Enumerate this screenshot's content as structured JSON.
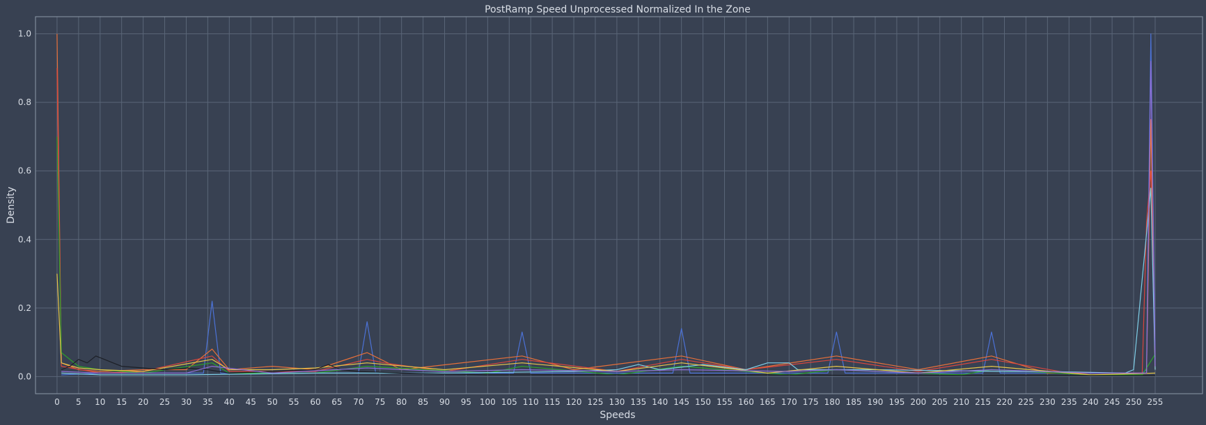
{
  "chart_data": {
    "type": "line",
    "title": "PostRamp Speed Unprocessed Normalized In the Zone",
    "xlabel": "Speeds",
    "ylabel": "Density",
    "xlim": [
      -5,
      266
    ],
    "ylim": [
      -0.05,
      1.05
    ],
    "x_ticks": [
      0,
      5,
      10,
      15,
      20,
      25,
      30,
      35,
      40,
      45,
      50,
      55,
      60,
      65,
      70,
      75,
      80,
      85,
      90,
      95,
      100,
      105,
      110,
      115,
      120,
      125,
      130,
      135,
      140,
      145,
      150,
      155,
      160,
      165,
      170,
      175,
      180,
      185,
      190,
      195,
      200,
      205,
      210,
      215,
      220,
      225,
      230,
      235,
      240,
      245,
      250,
      255
    ],
    "y_ticks": [
      0.0,
      0.2,
      0.4,
      0.6,
      0.8,
      1.0
    ],
    "y_tick_labels": [
      "0.0",
      "0.2",
      "0.4",
      "0.6",
      "0.8",
      "1.0"
    ],
    "grid": true,
    "legend": "none",
    "series": [
      {
        "color": "#4c72d6",
        "points": [
          [
            1,
            0.005
          ],
          [
            10,
            0.01
          ],
          [
            20,
            0.01
          ],
          [
            30,
            0.01
          ],
          [
            34,
            0.01
          ],
          [
            36,
            0.22
          ],
          [
            38,
            0.01
          ],
          [
            50,
            0.01
          ],
          [
            70,
            0.01
          ],
          [
            72,
            0.16
          ],
          [
            74,
            0.01
          ],
          [
            90,
            0.01
          ],
          [
            106,
            0.01
          ],
          [
            108,
            0.13
          ],
          [
            110,
            0.01
          ],
          [
            130,
            0.01
          ],
          [
            143,
            0.01
          ],
          [
            145,
            0.14
          ],
          [
            147,
            0.01
          ],
          [
            165,
            0.01
          ],
          [
            179,
            0.01
          ],
          [
            181,
            0.13
          ],
          [
            183,
            0.01
          ],
          [
            200,
            0.01
          ],
          [
            215,
            0.01
          ],
          [
            217,
            0.13
          ],
          [
            219,
            0.01
          ],
          [
            240,
            0.01
          ],
          [
            252,
            0.01
          ],
          [
            253,
            0.02
          ],
          [
            254,
            1.0
          ],
          [
            255,
            0.05
          ]
        ]
      },
      {
        "color": "#e8703a",
        "points": [
          [
            0,
            1.0
          ],
          [
            1,
            0.04
          ],
          [
            5,
            0.02
          ],
          [
            10,
            0.015
          ],
          [
            20,
            0.02
          ],
          [
            30,
            0.02
          ],
          [
            36,
            0.08
          ],
          [
            40,
            0.02
          ],
          [
            50,
            0.03
          ],
          [
            60,
            0.02
          ],
          [
            72,
            0.07
          ],
          [
            80,
            0.02
          ],
          [
            108,
            0.06
          ],
          [
            120,
            0.02
          ],
          [
            145,
            0.06
          ],
          [
            160,
            0.02
          ],
          [
            181,
            0.06
          ],
          [
            200,
            0.02
          ],
          [
            217,
            0.06
          ],
          [
            230,
            0.01
          ],
          [
            250,
            0.01
          ],
          [
            253,
            0.01
          ],
          [
            254,
            0.75
          ],
          [
            255,
            0.02
          ]
        ]
      },
      {
        "color": "#d9463e",
        "points": [
          [
            0,
            0.9
          ],
          [
            1,
            0.03
          ],
          [
            10,
            0.01
          ],
          [
            20,
            0.015
          ],
          [
            36,
            0.06
          ],
          [
            40,
            0.015
          ],
          [
            60,
            0.015
          ],
          [
            72,
            0.05
          ],
          [
            76,
            0.04
          ],
          [
            90,
            0.015
          ],
          [
            108,
            0.05
          ],
          [
            130,
            0.015
          ],
          [
            145,
            0.05
          ],
          [
            160,
            0.02
          ],
          [
            181,
            0.05
          ],
          [
            200,
            0.015
          ],
          [
            217,
            0.05
          ],
          [
            235,
            0.01
          ],
          [
            252,
            0.01
          ],
          [
            253,
            0.45
          ],
          [
            254,
            0.6
          ],
          [
            255,
            0.02
          ]
        ]
      },
      {
        "color": "#2ca02c",
        "points": [
          [
            0,
            0.7
          ],
          [
            1,
            0.07
          ],
          [
            5,
            0.03
          ],
          [
            10,
            0.02
          ],
          [
            20,
            0.01
          ],
          [
            36,
            0.04
          ],
          [
            40,
            0.01
          ],
          [
            60,
            0.01
          ],
          [
            72,
            0.03
          ],
          [
            100,
            0.01
          ],
          [
            108,
            0.03
          ],
          [
            130,
            0.005
          ],
          [
            145,
            0.03
          ],
          [
            170,
            0.005
          ],
          [
            181,
            0.02
          ],
          [
            210,
            0.005
          ],
          [
            217,
            0.02
          ],
          [
            240,
            0.005
          ],
          [
            252,
            0.005
          ],
          [
            255,
            0.065
          ]
        ]
      },
      {
        "color": "#7fcfe8",
        "points": [
          [
            1,
            0.01
          ],
          [
            10,
            0.005
          ],
          [
            30,
            0.005
          ],
          [
            60,
            0.01
          ],
          [
            90,
            0.01
          ],
          [
            120,
            0.015
          ],
          [
            130,
            0.02
          ],
          [
            135,
            0.035
          ],
          [
            140,
            0.02
          ],
          [
            150,
            0.035
          ],
          [
            160,
            0.02
          ],
          [
            165,
            0.04
          ],
          [
            170,
            0.04
          ],
          [
            172,
            0.02
          ],
          [
            190,
            0.02
          ],
          [
            220,
            0.015
          ],
          [
            230,
            0.015
          ],
          [
            248,
            0.01
          ],
          [
            250,
            0.02
          ],
          [
            254,
            0.55
          ],
          [
            255,
            0.02
          ]
        ]
      },
      {
        "color": "#e7c64a",
        "points": [
          [
            0,
            0.3
          ],
          [
            1,
            0.04
          ],
          [
            5,
            0.025
          ],
          [
            10,
            0.02
          ],
          [
            20,
            0.015
          ],
          [
            36,
            0.05
          ],
          [
            40,
            0.02
          ],
          [
            50,
            0.02
          ],
          [
            60,
            0.025
          ],
          [
            72,
            0.04
          ],
          [
            90,
            0.02
          ],
          [
            108,
            0.04
          ],
          [
            130,
            0.015
          ],
          [
            145,
            0.04
          ],
          [
            165,
            0.01
          ],
          [
            181,
            0.03
          ],
          [
            200,
            0.01
          ],
          [
            217,
            0.03
          ],
          [
            240,
            0.005
          ],
          [
            255,
            0.01
          ]
        ]
      },
      {
        "color": "#1c1f26",
        "points": [
          [
            1,
            0.02
          ],
          [
            3,
            0.03
          ],
          [
            5,
            0.05
          ],
          [
            7,
            0.04
          ],
          [
            9,
            0.06
          ],
          [
            11,
            0.05
          ],
          [
            13,
            0.04
          ],
          [
            15,
            0.03
          ],
          [
            20,
            0.025
          ],
          [
            25,
            0.02
          ],
          [
            30,
            0.025
          ],
          [
            35,
            0.02
          ],
          [
            40,
            0.01
          ],
          [
            50,
            0.015
          ],
          [
            60,
            0.02
          ],
          [
            63,
            0.035
          ],
          [
            66,
            0.02
          ],
          [
            70,
            0.015
          ],
          [
            80,
            0.01
          ],
          [
            100,
            0.005
          ],
          [
            130,
            0.005
          ],
          [
            160,
            0.005
          ],
          [
            200,
            0.003
          ],
          [
            255,
            0.003
          ]
        ]
      },
      {
        "color": "#8f6fd6",
        "points": [
          [
            1,
            0.015
          ],
          [
            10,
            0.01
          ],
          [
            30,
            0.01
          ],
          [
            36,
            0.03
          ],
          [
            50,
            0.01
          ],
          [
            72,
            0.025
          ],
          [
            90,
            0.015
          ],
          [
            108,
            0.02
          ],
          [
            130,
            0.015
          ],
          [
            145,
            0.02
          ],
          [
            170,
            0.015
          ],
          [
            181,
            0.02
          ],
          [
            200,
            0.01
          ],
          [
            217,
            0.02
          ],
          [
            240,
            0.01
          ],
          [
            253,
            0.01
          ],
          [
            254,
            0.92
          ],
          [
            255,
            0.03
          ]
        ]
      }
    ]
  }
}
